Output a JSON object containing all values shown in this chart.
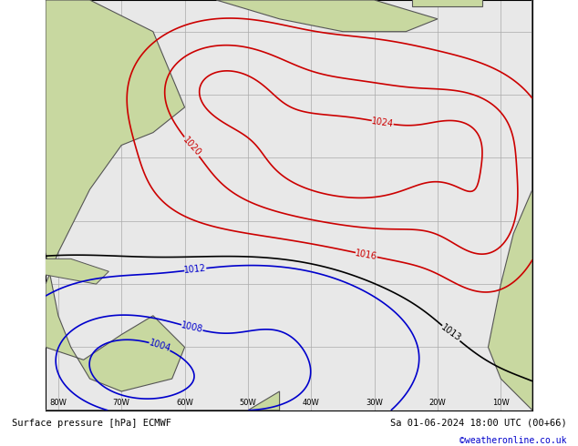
{
  "title_left": "Surface pressure [hPa] ECMWF",
  "title_right": "Sa 01-06-2024 18:00 UTC (00+66)",
  "credit": "©weatheronline.co.uk",
  "background_color": "#d4e8f0",
  "land_color": "#c8d8a0",
  "ocean_color": "#e8e8e8",
  "grid_color": "#aaaaaa",
  "contour_red_color": "#cc0000",
  "contour_black_color": "#000000",
  "contour_blue_color": "#0000cc",
  "fig_width": 6.34,
  "fig_height": 4.9,
  "dpi": 100,
  "bottom_bar_color": "#d0d0d0",
  "bottom_text_color": "#000000",
  "credit_color": "#0000cc"
}
